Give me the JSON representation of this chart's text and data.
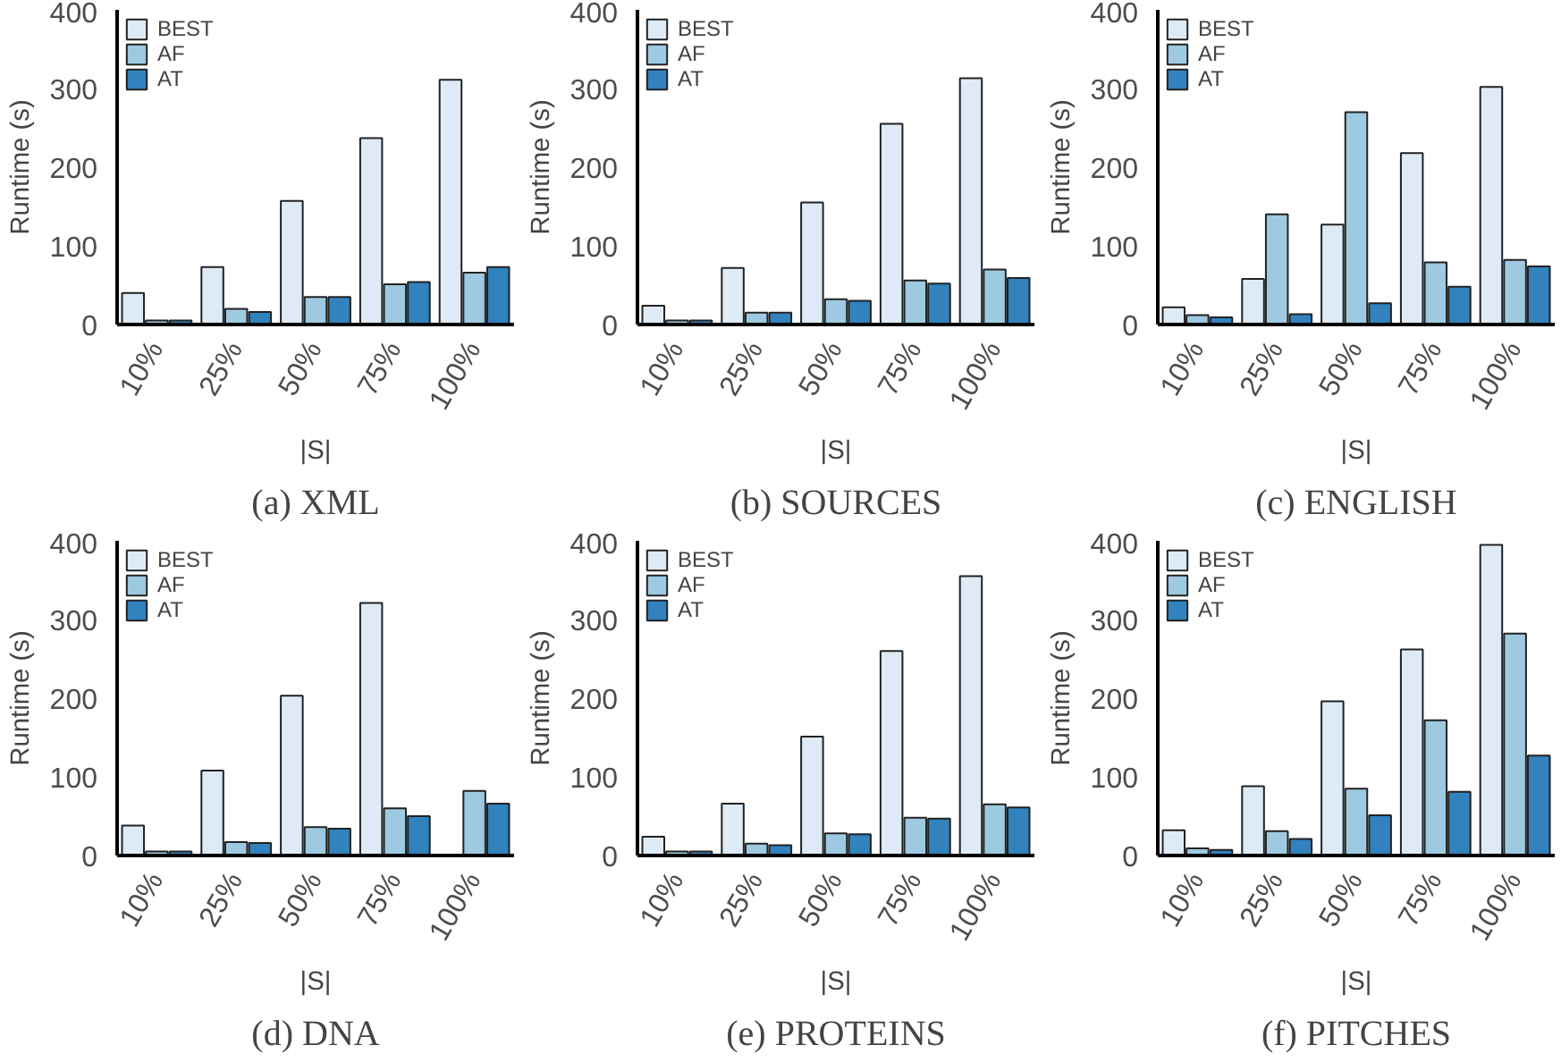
{
  "chart_data": [
    {
      "type": "bar",
      "title": "(a) XML",
      "xlabel": "|S|",
      "ylabel": "Runtime (s)",
      "categories": [
        "10%",
        "25%",
        "50%",
        "75%",
        "100%"
      ],
      "ylim": [
        0,
        400
      ],
      "yticks": [
        0,
        100,
        200,
        300,
        400
      ],
      "grid": false,
      "legend": "top left",
      "series": [
        {
          "name": "BEST",
          "color": "#deebf7",
          "values": [
            40,
            73,
            157,
            237,
            311
          ]
        },
        {
          "name": "AF",
          "color": "#9ecae1",
          "values": [
            5,
            20,
            35,
            51,
            66
          ]
        },
        {
          "name": "AT",
          "color": "#3182bd",
          "values": [
            5,
            16,
            35,
            54,
            73
          ]
        }
      ]
    },
    {
      "type": "bar",
      "title": "(b) SOURCES",
      "xlabel": "|S|",
      "ylabel": "Runtime (s)",
      "categories": [
        "10%",
        "25%",
        "50%",
        "75%",
        "100%"
      ],
      "ylim": [
        0,
        400
      ],
      "yticks": [
        0,
        100,
        200,
        300,
        400
      ],
      "grid": false,
      "legend": "top left",
      "series": [
        {
          "name": "BEST",
          "color": "#deebf7",
          "values": [
            24,
            72,
            155,
            255,
            313
          ]
        },
        {
          "name": "AF",
          "color": "#9ecae1",
          "values": [
            5,
            15,
            32,
            56,
            70
          ]
        },
        {
          "name": "AT",
          "color": "#3182bd",
          "values": [
            5,
            15,
            30,
            52,
            59
          ]
        }
      ]
    },
    {
      "type": "bar",
      "title": "(c) ENGLISH",
      "xlabel": "|S|",
      "ylabel": "Runtime (s)",
      "categories": [
        "10%",
        "25%",
        "50%",
        "75%",
        "100%"
      ],
      "ylim": [
        0,
        400
      ],
      "yticks": [
        0,
        100,
        200,
        300,
        400
      ],
      "grid": false,
      "legend": "top left",
      "series": [
        {
          "name": "BEST",
          "color": "#deebf7",
          "values": [
            22,
            58,
            127,
            218,
            302
          ]
        },
        {
          "name": "AF",
          "color": "#9ecae1",
          "values": [
            12,
            140,
            270,
            79,
            82
          ]
        },
        {
          "name": "AT",
          "color": "#3182bd",
          "values": [
            9,
            13,
            27,
            48,
            74
          ]
        }
      ]
    },
    {
      "type": "bar",
      "title": "(d) DNA",
      "xlabel": "|S|",
      "ylabel": "Runtime (s)",
      "categories": [
        "10%",
        "25%",
        "50%",
        "75%",
        "100%"
      ],
      "ylim": [
        0,
        400
      ],
      "yticks": [
        0,
        100,
        200,
        300,
        400
      ],
      "grid": false,
      "legend": "top left",
      "series": [
        {
          "name": "BEST",
          "color": "#deebf7",
          "values": [
            38,
            108,
            203,
            321,
            null
          ]
        },
        {
          "name": "AF",
          "color": "#9ecae1",
          "values": [
            5,
            17,
            36,
            60,
            82
          ]
        },
        {
          "name": "AT",
          "color": "#3182bd",
          "values": [
            5,
            16,
            34,
            50,
            66
          ]
        }
      ]
    },
    {
      "type": "bar",
      "title": "(e) PROTEINS",
      "xlabel": "|S|",
      "ylabel": "Runtime (s)",
      "categories": [
        "10%",
        "25%",
        "50%",
        "75%",
        "100%"
      ],
      "ylim": [
        0,
        400
      ],
      "yticks": [
        0,
        100,
        200,
        300,
        400
      ],
      "grid": false,
      "legend": "top left",
      "series": [
        {
          "name": "BEST",
          "color": "#deebf7",
          "values": [
            24,
            66,
            151,
            260,
            355
          ]
        },
        {
          "name": "AF",
          "color": "#9ecae1",
          "values": [
            5,
            15,
            28,
            48,
            65
          ]
        },
        {
          "name": "AT",
          "color": "#3182bd",
          "values": [
            5,
            13,
            27,
            47,
            61
          ]
        }
      ]
    },
    {
      "type": "bar",
      "title": "(f) PITCHES",
      "xlabel": "|S|",
      "ylabel": "Runtime (s)",
      "categories": [
        "10%",
        "25%",
        "50%",
        "75%",
        "100%"
      ],
      "ylim": [
        0,
        400
      ],
      "yticks": [
        0,
        100,
        200,
        300,
        400
      ],
      "grid": false,
      "legend": "top left",
      "series": [
        {
          "name": "BEST",
          "color": "#deebf7",
          "values": [
            32,
            88,
            196,
            262,
            395
          ]
        },
        {
          "name": "AF",
          "color": "#9ecae1",
          "values": [
            9,
            31,
            85,
            172,
            282
          ]
        },
        {
          "name": "AT",
          "color": "#3182bd",
          "values": [
            7,
            21,
            51,
            81,
            127
          ]
        }
      ]
    }
  ]
}
